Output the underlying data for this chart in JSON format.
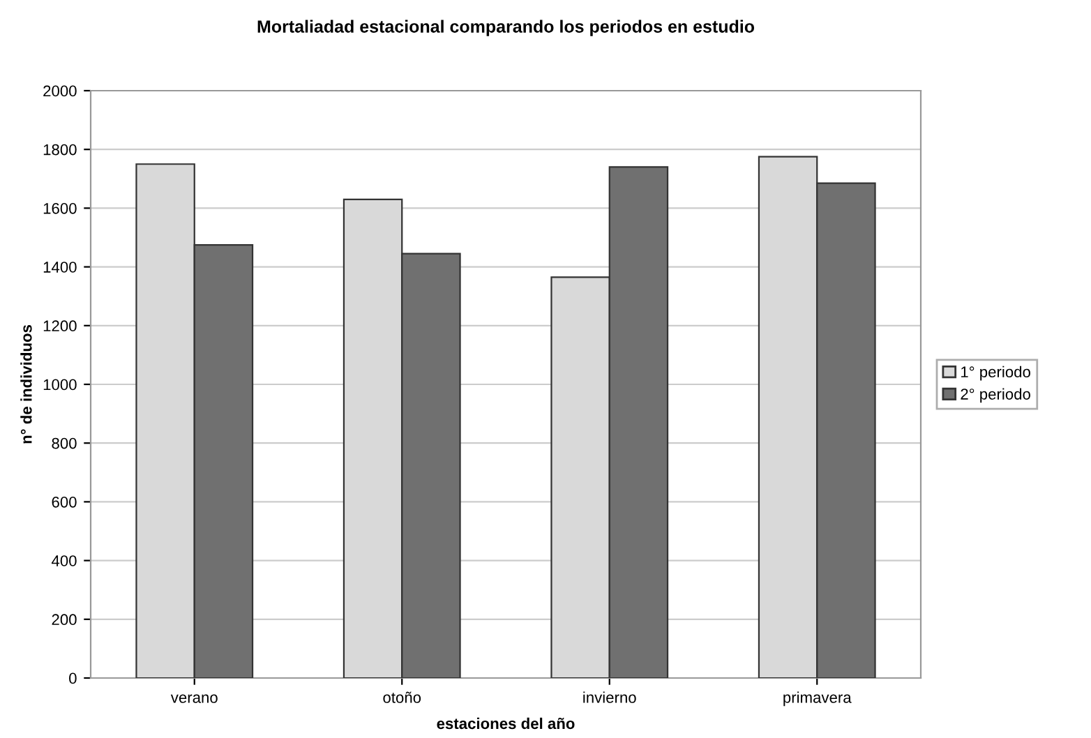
{
  "chart_data": {
    "type": "bar",
    "title": "Mortaliadad estacional comparando los periodos en estudio",
    "xlabel": "estaciones del año",
    "ylabel": "n° de individuos",
    "categories": [
      "verano",
      "otoño",
      "invierno",
      "primavera"
    ],
    "series": [
      {
        "name": "1° periodo",
        "color": "#d9d9d9",
        "values": [
          1750,
          1630,
          1365,
          1775
        ]
      },
      {
        "name": "2° periodo",
        "color": "#707070",
        "values": [
          1475,
          1445,
          1740,
          1685
        ]
      }
    ],
    "ylim": [
      0,
      2000
    ],
    "yticks": [
      0,
      200,
      400,
      600,
      800,
      1000,
      1200,
      1400,
      1600,
      1800,
      2000
    ],
    "grid": "y",
    "legend": "right"
  }
}
